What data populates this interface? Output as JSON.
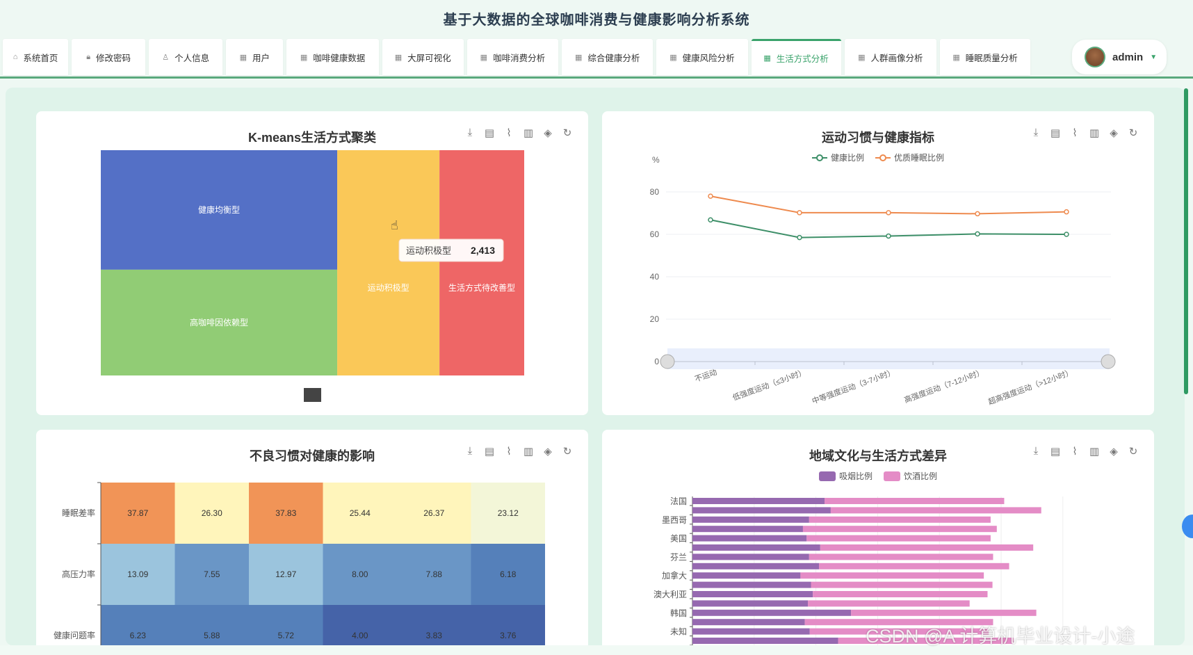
{
  "app_title": "基于大数据的全球咖啡消费与健康影响分析系统",
  "nav": {
    "tabs": [
      {
        "label": "系统首页",
        "icon": "home-icon"
      },
      {
        "label": "修改密码",
        "icon": "lock-icon"
      },
      {
        "label": "个人信息",
        "icon": "user-icon"
      },
      {
        "label": "用户",
        "icon": "grid-icon"
      },
      {
        "label": "咖啡健康数据",
        "icon": "grid-icon"
      },
      {
        "label": "大屏可视化",
        "icon": "grid-icon"
      },
      {
        "label": "咖啡消费分析",
        "icon": "grid-icon"
      },
      {
        "label": "综合健康分析",
        "icon": "grid-icon"
      },
      {
        "label": "健康风险分析",
        "icon": "grid-icon"
      },
      {
        "label": "生活方式分析",
        "icon": "grid-icon",
        "active": true
      },
      {
        "label": "人群画像分析",
        "icon": "grid-icon"
      },
      {
        "label": "睡眠质量分析",
        "icon": "grid-icon"
      }
    ],
    "user": {
      "name": "admin"
    }
  },
  "toolbox": [
    "download-icon",
    "data-view-icon",
    "line-icon",
    "bar-icon",
    "stack-icon",
    "refresh-icon"
  ],
  "watermark": "CSDN @A 计算机毕业设计-小途",
  "chart_data": [
    {
      "type": "treemap",
      "title": "K-means生活方式聚类",
      "items": [
        {
          "name": "健康均衡型",
          "value": 2960,
          "color": "#5470c6"
        },
        {
          "name": "高咖啡因依赖型",
          "value": 2620,
          "color": "#91cc75"
        },
        {
          "name": "运动积极型",
          "value": 2413,
          "color": "#fac858"
        },
        {
          "name": "生活方式待改善型",
          "value": 2000,
          "color": "#ee6666"
        }
      ],
      "tooltip": {
        "name": "运动积极型",
        "value": "2,413"
      }
    },
    {
      "type": "line",
      "title": "运动习惯与健康指标",
      "ylabel": "%",
      "ylim": [
        0,
        80
      ],
      "yticks": [
        0,
        20,
        40,
        60,
        80
      ],
      "grid": true,
      "categories": [
        "不运动",
        "低强度运动（≤3小时）",
        "中等强度运动（3-7小时）",
        "高强度运动（7-12小时）",
        "超高强度运动（>12小时）"
      ],
      "series": [
        {
          "name": "健康比例",
          "color": "#3d8f68",
          "values": [
            66.8,
            58.5,
            59.2,
            60.2,
            60.0
          ]
        },
        {
          "name": "优质睡眠比例",
          "color": "#ee8a4e",
          "values": [
            78.0,
            70.2,
            70.2,
            69.7,
            70.6
          ]
        }
      ],
      "legend": "top-center",
      "datazoom": true
    },
    {
      "type": "heatmap",
      "title": "不良习惯对健康的影响",
      "rows": [
        "睡眠差率",
        "高压力率",
        "健康问题率"
      ],
      "values": [
        [
          37.87,
          26.3,
          37.83,
          25.44,
          26.37,
          23.12
        ],
        [
          13.09,
          7.55,
          12.97,
          8.0,
          7.88,
          6.18
        ],
        [
          6.23,
          5.88,
          5.72,
          4.0,
          3.83,
          3.76
        ]
      ]
    },
    {
      "type": "bar",
      "stacked": true,
      "orientation": "horizontal",
      "title": "地域文化与生活方式差异",
      "categories": [
        "法国",
        "",
        "墨西哥",
        "",
        "美国",
        "",
        "芬兰",
        "",
        "加拿大",
        "",
        "澳大利亚",
        "",
        "韩国",
        "",
        "未知",
        ""
      ],
      "series": [
        {
          "name": "吸烟比例",
          "color": "#9669b0",
          "values": [
            21.4,
            22.4,
            18.9,
            17.9,
            18.5,
            20.7,
            18.9,
            20.5,
            17.5,
            19.2,
            19.5,
            18.7,
            25.7,
            18.2,
            19.0,
            23.6
          ]
        },
        {
          "name": "饮酒比例",
          "color": "#e48cc6",
          "values": [
            29.1,
            34.1,
            29.4,
            31.4,
            29.8,
            34.5,
            29.8,
            30.8,
            29.7,
            29.4,
            28.3,
            26.2,
            30.0,
            30.5,
            29.0,
            28.4
          ]
        }
      ],
      "legend": "top-center",
      "xlim": [
        0,
        60
      ],
      "grid": true
    }
  ]
}
